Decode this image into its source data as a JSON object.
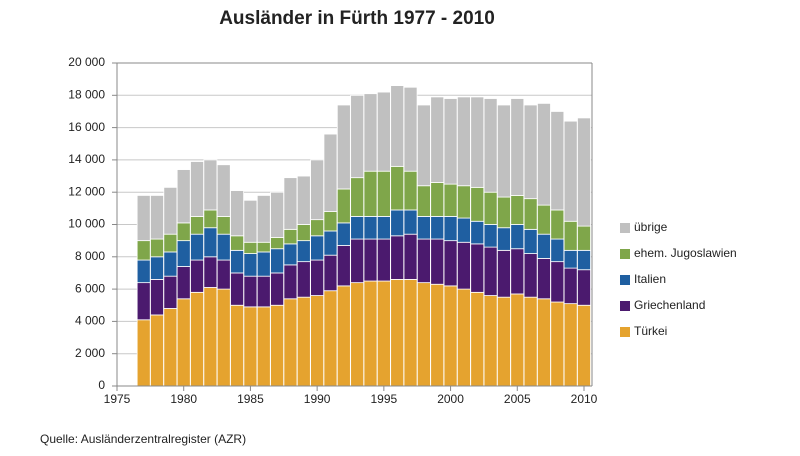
{
  "chart_data": {
    "type": "stacked-bar",
    "title": "Ausländer in Fürth 1977 - 2010",
    "source": "Quelle: Ausländerzentralregister (AZR)",
    "x": [
      1977,
      1978,
      1979,
      1980,
      1981,
      1982,
      1983,
      1984,
      1985,
      1986,
      1987,
      1988,
      1989,
      1990,
      1991,
      1992,
      1993,
      1994,
      1995,
      1996,
      1997,
      1998,
      1999,
      2000,
      2001,
      2002,
      2003,
      2004,
      2005,
      2006,
      2007,
      2008,
      2009,
      2010
    ],
    "xlim": [
      1975,
      2010.6
    ],
    "xticks": [
      1975,
      1980,
      1985,
      1990,
      1995,
      2000,
      2005,
      2010
    ],
    "ylim": [
      0,
      20000
    ],
    "yticks": [
      0,
      {
        "value": 2000,
        "label": "2 000"
      },
      {
        "value": 4000,
        "label": "4 000"
      },
      {
        "value": 6000,
        "label": "6 000"
      },
      {
        "value": 8000,
        "label": "8 000"
      },
      {
        "value": 10000,
        "label": "10 000"
      },
      {
        "value": 12000,
        "label": "12 000"
      },
      {
        "value": 14000,
        "label": "14 000"
      },
      {
        "value": 16000,
        "label": "16 000"
      },
      {
        "value": 18000,
        "label": "18 000"
      },
      {
        "value": 20000,
        "label": "20 000"
      }
    ],
    "grid": true,
    "legend": "right",
    "series": [
      {
        "name": "Türkei",
        "color": "#e5a32f",
        "values": [
          4100,
          4400,
          4800,
          5400,
          5800,
          6100,
          6000,
          5000,
          4900,
          4900,
          5000,
          5400,
          5500,
          5600,
          5900,
          6200,
          6400,
          6500,
          6500,
          6600,
          6600,
          6400,
          6300,
          6200,
          6000,
          5800,
          5600,
          5500,
          5700,
          5500,
          5400,
          5200,
          5100,
          5000
        ]
      },
      {
        "name": "Griechenland",
        "color": "#4b1a6e",
        "values": [
          2300,
          2200,
          2000,
          2000,
          2000,
          1900,
          1800,
          2000,
          1900,
          1900,
          2000,
          2100,
          2200,
          2200,
          2200,
          2500,
          2700,
          2600,
          2600,
          2700,
          2800,
          2700,
          2800,
          2800,
          2900,
          3000,
          3000,
          2900,
          2800,
          2700,
          2500,
          2500,
          2200,
          2200
        ]
      },
      {
        "name": "Italien",
        "color": "#1f5fa1",
        "values": [
          1400,
          1400,
          1500,
          1600,
          1600,
          1800,
          1600,
          1400,
          1400,
          1500,
          1500,
          1300,
          1300,
          1500,
          1500,
          1400,
          1400,
          1400,
          1400,
          1600,
          1500,
          1400,
          1400,
          1500,
          1500,
          1400,
          1400,
          1400,
          1500,
          1500,
          1500,
          1400,
          1100,
          1200
        ]
      },
      {
        "name": "ehem. Jugoslawien",
        "color": "#7fa64a",
        "values": [
          1200,
          1100,
          1100,
          1100,
          1100,
          1100,
          1100,
          900,
          700,
          600,
          700,
          900,
          1000,
          1000,
          1200,
          2100,
          2400,
          2800,
          2800,
          2700,
          2400,
          1900,
          2100,
          2000,
          2000,
          2100,
          2000,
          1900,
          1800,
          1900,
          1800,
          1800,
          1800,
          1500
        ]
      },
      {
        "name": "übrige",
        "color": "#c0c0c0",
        "values": [
          2800,
          2700,
          2900,
          3300,
          3400,
          3100,
          3200,
          2800,
          2600,
          2900,
          2800,
          3200,
          3000,
          3700,
          4800,
          5200,
          5100,
          4800,
          4900,
          5000,
          5200,
          5000,
          5300,
          5300,
          5500,
          5600,
          5800,
          5700,
          6000,
          5800,
          6300,
          6100,
          6200,
          6700
        ]
      }
    ]
  }
}
